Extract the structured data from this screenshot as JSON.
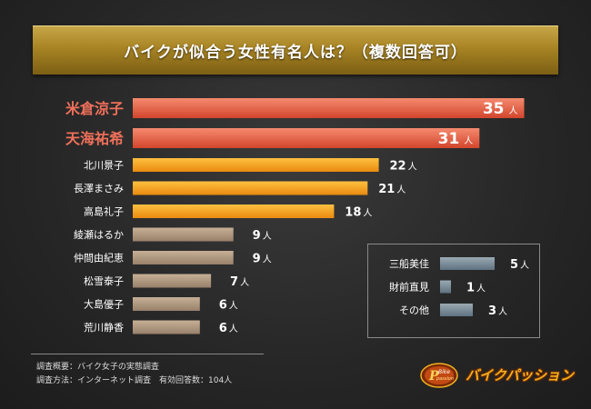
{
  "title": "バイクが似合う女性有名人は？（複数回答可）",
  "unit": "人",
  "colors": {
    "top": "#e85f46",
    "mid": "#f0a020",
    "low": "#b09a80",
    "inset": "#7a8c98"
  },
  "chart_data": {
    "type": "bar",
    "orientation": "horizontal",
    "categories": [
      "米倉涼子",
      "天海祐希",
      "北川景子",
      "長澤まさみ",
      "高島礼子",
      "綾瀬はるか",
      "仲間由紀恵",
      "松雪泰子",
      "大島優子",
      "荒川静香"
    ],
    "values": [
      35,
      31,
      22,
      21,
      18,
      9,
      9,
      7,
      6,
      6
    ],
    "inset": {
      "categories": [
        "三船美佳",
        "財前直見",
        "その他"
      ],
      "values": [
        5,
        1,
        3
      ]
    }
  },
  "footnotes": {
    "line1": "調査概要：バイク女子の実態調査",
    "line2": "調査方法：インターネット調査　有効回答数：104人"
  },
  "brand": {
    "logo_text": "P Bike Passion",
    "name": "バイクパッション"
  }
}
